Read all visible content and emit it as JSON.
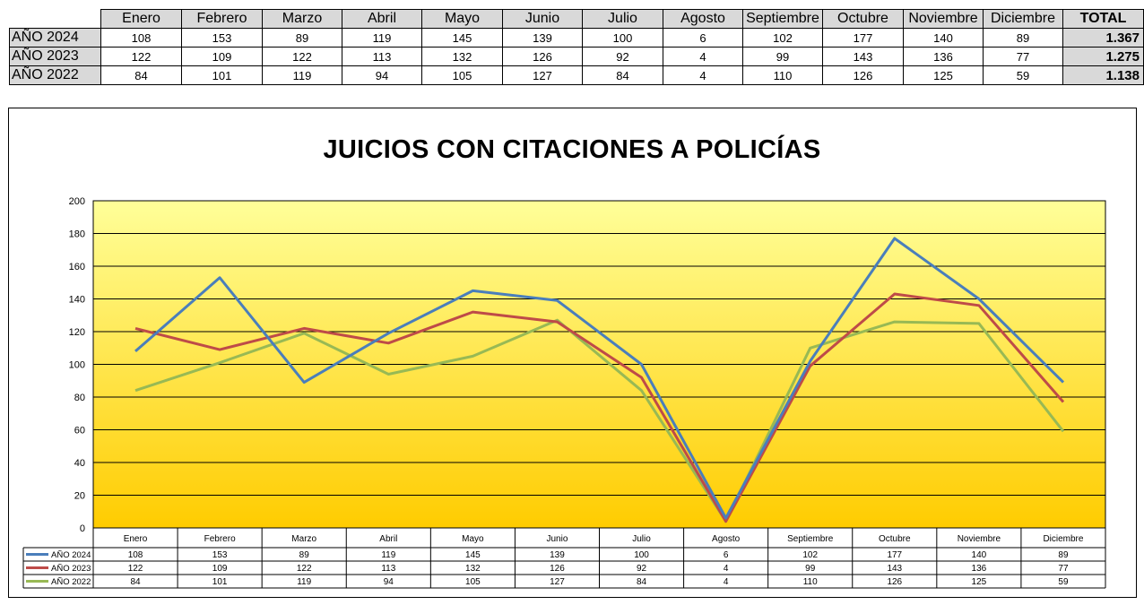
{
  "table": {
    "months": [
      "Enero",
      "Febrero",
      "Marzo",
      "Abril",
      "Mayo",
      "Junio",
      "Julio",
      "Agosto",
      "Septiembre",
      "Octubre",
      "Noviembre",
      "Diciembre"
    ],
    "total_label": "TOTAL",
    "rows": [
      {
        "label": "AÑO 2024",
        "values": [
          "108",
          "153",
          "89",
          "119",
          "145",
          "139",
          "100",
          "6",
          "102",
          "177",
          "140",
          "89"
        ],
        "total": "1.367"
      },
      {
        "label": "AÑO 2023",
        "values": [
          "122",
          "109",
          "122",
          "113",
          "132",
          "126",
          "92",
          "4",
          "99",
          "143",
          "136",
          "77"
        ],
        "total": "1.275"
      },
      {
        "label": "AÑO 2022",
        "values": [
          "84",
          "101",
          "119",
          "94",
          "105",
          "127",
          "84",
          "4",
          "110",
          "126",
          "125",
          "59"
        ],
        "total": "1.138"
      }
    ]
  },
  "chart_data": {
    "type": "line",
    "title": "JUICIOS CON CITACIONES A POLICÍAS",
    "categories": [
      "Enero",
      "Febrero",
      "Marzo",
      "Abril",
      "Mayo",
      "Junio",
      "Julio",
      "Agosto",
      "Septiembre",
      "Octubre",
      "Noviembre",
      "Diciembre"
    ],
    "series": [
      {
        "name": "AÑO 2024",
        "color": "#4a7ebb",
        "values": [
          108,
          153,
          89,
          119,
          145,
          139,
          100,
          6,
          102,
          177,
          140,
          89
        ]
      },
      {
        "name": "AÑO 2023",
        "color": "#be4b48",
        "values": [
          122,
          109,
          122,
          113,
          132,
          126,
          92,
          4,
          99,
          143,
          136,
          77
        ]
      },
      {
        "name": "AÑO 2022",
        "color": "#98b954",
        "values": [
          84,
          101,
          119,
          94,
          105,
          127,
          84,
          4,
          110,
          126,
          125,
          59
        ]
      }
    ],
    "ylim": [
      0,
      200
    ],
    "yticks": [
      0,
      20,
      40,
      60,
      80,
      100,
      120,
      140,
      160,
      180,
      200
    ],
    "grid": true,
    "legend": "data table below chart",
    "background_gradient": [
      "#ffff99",
      "#ffcc00"
    ]
  }
}
